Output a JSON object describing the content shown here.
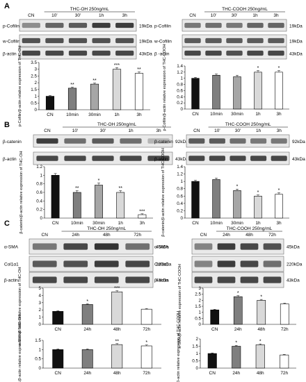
{
  "panel_letters": [
    "A",
    "B",
    "C"
  ],
  "blot_panels": [
    {
      "id": "A-left",
      "condition": "THC-OH 250ng/mL",
      "lanes": [
        "CN",
        "10'",
        "30'",
        "1h",
        "3h"
      ],
      "rows": [
        {
          "label": "p-Cofilin",
          "kda": "19kDa",
          "intensities": [
            0.45,
            0.65,
            0.7,
            0.85,
            0.85
          ]
        },
        {
          "label": "w-Cofilin",
          "kda": "19kDa",
          "intensities": [
            0.75,
            0.75,
            0.75,
            0.75,
            0.75
          ]
        },
        {
          "label": "β-actin",
          "kda": "43kDa",
          "intensities": [
            0.8,
            0.8,
            0.8,
            0.8,
            0.8
          ]
        }
      ]
    },
    {
      "id": "A-right",
      "condition": "THC-COOH 250ng/mL",
      "lanes": [
        "CN",
        "10'",
        "30'",
        "1h",
        "3h"
      ],
      "rows": [
        {
          "label": "p-Cofilin",
          "kda": "19kDa",
          "intensities": [
            0.55,
            0.6,
            0.55,
            0.65,
            0.65
          ]
        },
        {
          "label": "w-Cofilin",
          "kda": "19kDa",
          "intensities": [
            0.7,
            0.7,
            0.7,
            0.7,
            0.7
          ]
        },
        {
          "label": "β -actin",
          "kda": "43kDa",
          "intensities": [
            0.8,
            0.8,
            0.75,
            0.8,
            0.8
          ]
        }
      ]
    },
    {
      "id": "B-left",
      "condition": "THC-OH 250ng/mL",
      "lanes": [
        "CN",
        "10'",
        "30'",
        "1h",
        "3h"
      ],
      "rows": [
        {
          "label": "β-catenin",
          "kda": "92kDa",
          "intensities": [
            0.85,
            0.6,
            0.7,
            0.6,
            0.25
          ]
        },
        {
          "label": "β-actin",
          "kda": "43kDa",
          "intensities": [
            0.8,
            0.8,
            0.8,
            0.8,
            0.8
          ]
        }
      ]
    },
    {
      "id": "B-right",
      "condition": "THC-COOH 250ng/mL",
      "lanes": [
        "CN",
        "10'",
        "30'",
        "1h",
        "3h"
      ],
      "rows": [
        {
          "label": "β-catenin",
          "kda": "92kDa",
          "intensities": [
            0.7,
            0.7,
            0.6,
            0.55,
            0.55
          ]
        },
        {
          "label": "β-actin",
          "kda": "43kDa",
          "intensities": [
            0.8,
            0.8,
            0.8,
            0.8,
            0.8
          ]
        }
      ]
    },
    {
      "id": "C-left",
      "condition": "THC-OH 250ng/mL",
      "lanes": [
        "CN",
        "24h",
        "48h",
        "72h"
      ],
      "rows": [
        {
          "label": "α-SMA",
          "kda": "45kDa",
          "intensities": [
            0.55,
            0.8,
            0.9,
            0.6
          ]
        },
        {
          "label": "Col1α1",
          "kda": "220kDa",
          "intensities": [
            0.7,
            0.75,
            0.85,
            0.8
          ]
        },
        {
          "label": "β-actin",
          "kda": "43kDa",
          "intensities": [
            0.8,
            0.8,
            0.8,
            0.8
          ]
        }
      ]
    },
    {
      "id": "C-right",
      "condition": "THC-COOH 250ng/mL",
      "lanes": [
        "CN",
        "24h",
        "48h",
        "72h"
      ],
      "rows": [
        {
          "label": "α-SMA",
          "kda": "45kDa",
          "intensities": [
            0.5,
            0.85,
            0.8,
            0.75
          ]
        },
        {
          "label": "Col1α1",
          "kda": "220kDa",
          "intensities": [
            0.5,
            0.85,
            0.8,
            0.6
          ]
        },
        {
          "label": "β-actin",
          "kda": "43kDa",
          "intensities": [
            0.8,
            0.8,
            0.8,
            0.8
          ]
        }
      ]
    }
  ],
  "chart_data": [
    {
      "id": "A-left",
      "type": "bar",
      "categories": [
        "CN",
        "10min",
        "30min",
        "1h",
        "3h"
      ],
      "values": [
        1.0,
        1.6,
        1.9,
        3.0,
        2.7
      ],
      "errors": [
        0.05,
        0.07,
        0.08,
        0.12,
        0.1
      ],
      "significance": [
        "",
        "**",
        "**",
        "***",
        "**"
      ],
      "ylabel": "p-Cofilin/β-actin relative expression of THC-OH",
      "ylim": [
        0,
        3.5
      ],
      "yticks": [
        "0",
        "0.5",
        "1",
        "1.5",
        "2",
        "2.5",
        "3",
        "3.5"
      ],
      "colors": [
        "#111111",
        "#7f7f7f",
        "#a6a6a6",
        "#d9d9d9",
        "#ffffff"
      ]
    },
    {
      "id": "A-right",
      "type": "bar",
      "categories": [
        "CN",
        "10min",
        "30min",
        "1h",
        "3h"
      ],
      "values": [
        1.0,
        1.1,
        1.05,
        1.2,
        1.2
      ],
      "errors": [
        0.03,
        0.04,
        0.05,
        0.05,
        0.05
      ],
      "significance": [
        "",
        "",
        "",
        "*",
        "*"
      ],
      "ylabel": "p-Cofilin/β-actin relative expression of THC-COOH",
      "ylim": [
        0,
        1.4
      ],
      "yticks": [
        "0",
        "0.2",
        "0.4",
        "0.6",
        "0.8",
        "1",
        "1.2",
        "1.4"
      ],
      "colors": [
        "#111111",
        "#7f7f7f",
        "#a6a6a6",
        "#d9d9d9",
        "#ffffff"
      ]
    },
    {
      "id": "B-left",
      "type": "bar",
      "categories": [
        "CN",
        "10min",
        "30min",
        "1h",
        "3h"
      ],
      "values": [
        1.0,
        0.6,
        0.77,
        0.6,
        0.08
      ],
      "errors": [
        0.04,
        0.04,
        0.05,
        0.04,
        0.02
      ],
      "significance": [
        "",
        "**",
        "*",
        "**",
        "***"
      ],
      "ylabel": "β-catenin/β-actin relative expression of THC-OH",
      "ylim": [
        0,
        1.2
      ],
      "yticks": [
        "0",
        "0.2",
        "0.4",
        "0.6",
        "0.8",
        "1",
        "1.2"
      ],
      "colors": [
        "#111111",
        "#7f7f7f",
        "#a6a6a6",
        "#d9d9d9",
        "#ffffff"
      ]
    },
    {
      "id": "B-right",
      "type": "bar",
      "categories": [
        "CN",
        "10min",
        "30min",
        "1h",
        "3h"
      ],
      "values": [
        1.0,
        1.05,
        0.75,
        0.6,
        0.65
      ],
      "errors": [
        0.03,
        0.04,
        0.04,
        0.03,
        0.04
      ],
      "significance": [
        "",
        "",
        "*",
        "*",
        "*"
      ],
      "ylabel": "β-catenin/β-actin relative expression of THC-COOH",
      "ylim": [
        0,
        1.4
      ],
      "yticks": [
        "0",
        "0.2",
        "0.4",
        "0.6",
        "0.8",
        "1",
        "1.2",
        "1.4"
      ],
      "colors": [
        "#111111",
        "#7f7f7f",
        "#a6a6a6",
        "#d9d9d9",
        "#ffffff"
      ]
    },
    {
      "id": "C-left-sma",
      "type": "bar",
      "categories": [
        "CN",
        "24h",
        "48h",
        "72h"
      ],
      "values": [
        1.8,
        2.75,
        4.5,
        2.1
      ],
      "errors": [
        0.08,
        0.1,
        0.15,
        0.08
      ],
      "significance": [
        "",
        "*",
        "***",
        ""
      ],
      "ylabel": "a-SMA/β-actin relative expression of THC-OH",
      "ylim": [
        0,
        5
      ],
      "yticks": [
        "0",
        "1",
        "2",
        "3",
        "4",
        "5"
      ],
      "colors": [
        "#111111",
        "#7f7f7f",
        "#d9d9d9",
        "#ffffff"
      ]
    },
    {
      "id": "C-right-sma",
      "type": "bar",
      "categories": [
        "CN",
        "24h",
        "48h",
        "72h"
      ],
      "values": [
        1.2,
        2.3,
        2.0,
        1.7
      ],
      "errors": [
        0.05,
        0.08,
        0.07,
        0.06
      ],
      "significance": [
        "",
        "*",
        "*",
        ""
      ],
      "ylabel": "a-SMA/β-actin relative expression of THC-COOH",
      "ylim": [
        0,
        3
      ],
      "yticks": [
        "0",
        "0.5",
        "1",
        "1.5",
        "2",
        "2.5",
        "3"
      ],
      "colors": [
        "#111111",
        "#7f7f7f",
        "#d9d9d9",
        "#ffffff"
      ]
    },
    {
      "id": "C-left-col",
      "type": "bar",
      "categories": [
        "CN",
        "24h",
        "48h",
        "72h"
      ],
      "values": [
        1.0,
        1.0,
        1.27,
        1.2
      ],
      "errors": [
        0.04,
        0.04,
        0.05,
        0.05
      ],
      "significance": [
        "",
        "",
        "**",
        "*"
      ],
      "ylabel": "Col1a1/β-actin relative expression of THC-OH",
      "ylim": [
        0,
        1.5
      ],
      "yticks": [
        "0",
        "0.5",
        "1",
        "1.5"
      ],
      "colors": [
        "#111111",
        "#7f7f7f",
        "#d9d9d9",
        "#ffffff"
      ]
    },
    {
      "id": "C-right-col",
      "type": "bar",
      "categories": [
        "CN",
        "24h",
        "48h",
        "72h"
      ],
      "values": [
        1.0,
        1.5,
        1.6,
        0.9
      ],
      "errors": [
        0.04,
        0.06,
        0.06,
        0.04
      ],
      "significance": [
        "",
        "*",
        "*",
        ""
      ],
      "ylabel": "Col1a1/β-actin relative expression of THC-COOH",
      "ylim": [
        0,
        2
      ],
      "yticks": [
        "0",
        "0.5",
        "1",
        "1.5",
        "2"
      ],
      "colors": [
        "#111111",
        "#7f7f7f",
        "#d9d9d9",
        "#ffffff"
      ]
    }
  ]
}
